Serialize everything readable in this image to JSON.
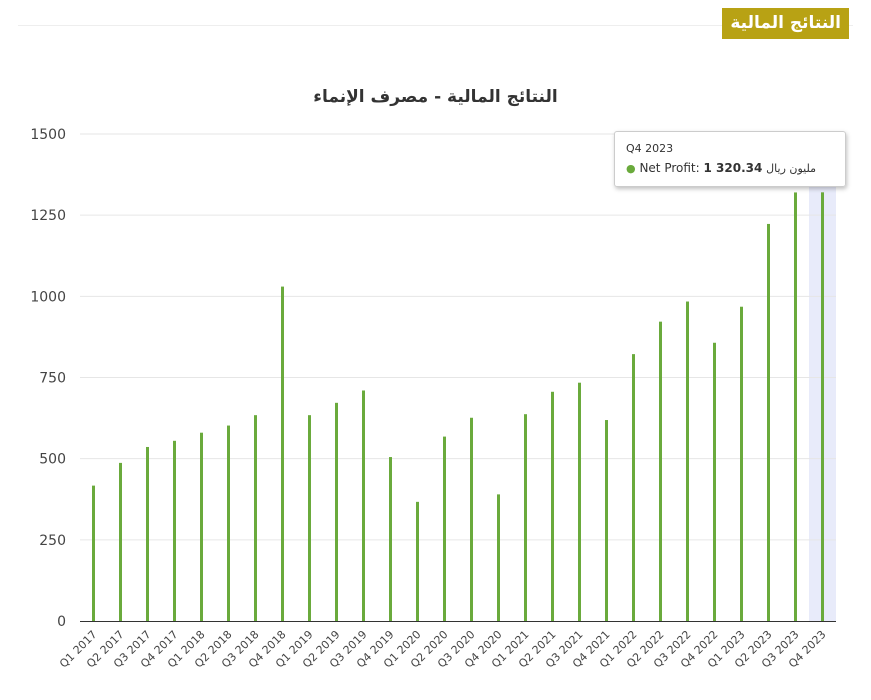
{
  "header": {
    "section_title": "النتائج المالية"
  },
  "colors": {
    "bar": "#6aaa3c",
    "badge": "#b8a214",
    "highlight_band": "#e8ebfa"
  },
  "tooltip": {
    "category": "Q4 2023",
    "series_label": "Net Profit:",
    "value": "1 320.34",
    "unit": "مليون ريال"
  },
  "chart_data": {
    "type": "bar",
    "title": "النتائج المالية - مصرف الإنماء",
    "xlabel": "",
    "ylabel": "",
    "ylim": [
      0,
      1500
    ],
    "yticks": [
      "0",
      "250",
      "500",
      "750",
      "1000",
      "1250",
      "1500"
    ],
    "grid": true,
    "highlighted_category": "Q4 2023",
    "categories": [
      "Q1 2017",
      "Q2 2017",
      "Q3 2017",
      "Q4 2017",
      "Q1 2018",
      "Q2 2018",
      "Q3 2018",
      "Q4 2018",
      "Q1 2019",
      "Q2 2019",
      "Q3 2019",
      "Q4 2019",
      "Q1 2020",
      "Q2 2020",
      "Q3 2020",
      "Q4 2020",
      "Q1 2021",
      "Q2 2021",
      "Q3 2021",
      "Q4 2021",
      "Q1 2022",
      "Q2 2022",
      "Q3 2022",
      "Q4 2022",
      "Q1 2023",
      "Q2 2023",
      "Q3 2023",
      "Q4 2023"
    ],
    "series": [
      {
        "name": "Net Profit",
        "values": [
          417,
          487,
          536,
          555,
          580,
          602,
          634,
          1030,
          634,
          672,
          710,
          505,
          367,
          568,
          626,
          390,
          637,
          706,
          734,
          619,
          822,
          922,
          984,
          857,
          968,
          1223,
          1320,
          1320.34
        ]
      }
    ]
  }
}
